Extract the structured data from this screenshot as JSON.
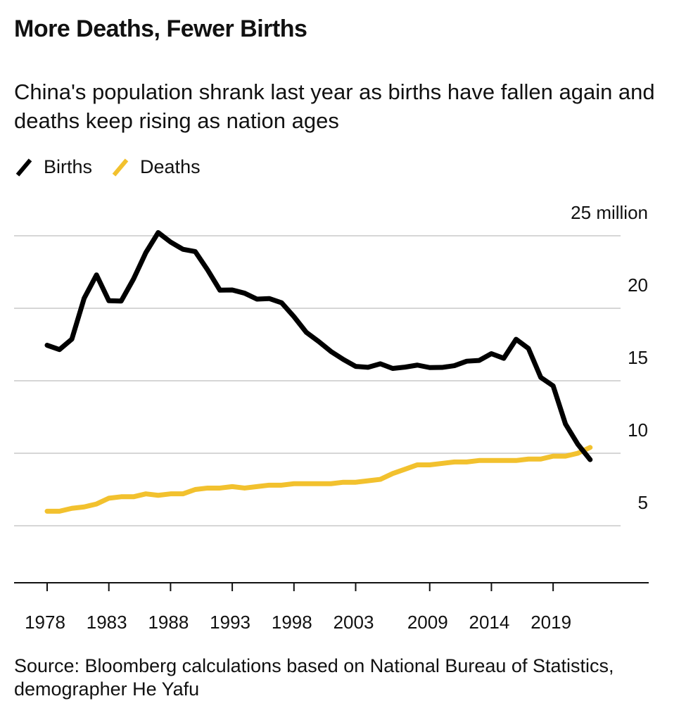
{
  "title": "More Deaths, Fewer Births",
  "subtitle": "China's population shrank last year as births have fallen again and deaths keep rising as nation ages",
  "source": "Source: Bloomberg calculations based on National Bureau of Statistics, demographer He Yafu",
  "chart_data": {
    "type": "line",
    "title": "More Deaths, Fewer Births",
    "xlabel": "",
    "ylabel": "",
    "ylim": [
      0,
      25
    ],
    "y_ticks": [
      {
        "v": 25,
        "label": "25 million"
      },
      {
        "v": 20,
        "label": "20"
      },
      {
        "v": 15,
        "label": "15"
      },
      {
        "v": 10,
        "label": "10"
      },
      {
        "v": 5,
        "label": "5"
      }
    ],
    "x_ticks": [
      "1978",
      "1983",
      "1988",
      "1993",
      "1998",
      "2003",
      "2009",
      "2014",
      "2019"
    ],
    "grid": true,
    "legend": "top-left",
    "x": [
      1978,
      1979,
      1980,
      1981,
      1982,
      1983,
      1984,
      1985,
      1986,
      1987,
      1988,
      1989,
      1990,
      1991,
      1992,
      1993,
      1994,
      1995,
      1996,
      1997,
      1998,
      1999,
      2000,
      2001,
      2002,
      2003,
      2004,
      2005,
      2006,
      2007,
      2008,
      2009,
      2010,
      2011,
      2012,
      2013,
      2014,
      2015,
      2016,
      2017,
      2018,
      2019,
      2020,
      2021,
      2022
    ],
    "series": [
      {
        "name": "Births",
        "color": "#000000",
        "values": [
          17.45,
          17.15,
          17.87,
          20.69,
          22.3,
          20.52,
          20.5,
          22.02,
          23.84,
          25.22,
          24.57,
          24.07,
          23.91,
          22.65,
          21.25,
          21.26,
          21.04,
          20.63,
          20.67,
          20.38,
          19.42,
          18.34,
          17.71,
          17.02,
          16.47,
          15.99,
          15.93,
          16.17,
          15.85,
          15.94,
          16.08,
          15.91,
          15.92,
          16.04,
          16.35,
          16.4,
          16.87,
          16.55,
          17.86,
          17.23,
          15.23,
          14.65,
          12.02,
          10.62,
          9.56
        ]
      },
      {
        "name": "Deaths",
        "color": "#f2c12e",
        "values": [
          6.0,
          6.0,
          6.2,
          6.3,
          6.5,
          6.9,
          7.0,
          7.0,
          7.2,
          7.1,
          7.2,
          7.2,
          7.5,
          7.6,
          7.6,
          7.7,
          7.6,
          7.7,
          7.8,
          7.8,
          7.9,
          7.9,
          7.9,
          7.9,
          8.0,
          8.0,
          8.1,
          8.2,
          8.6,
          8.9,
          9.2,
          9.2,
          9.3,
          9.4,
          9.4,
          9.5,
          9.5,
          9.5,
          9.5,
          9.6,
          9.6,
          9.8,
          9.8,
          10.0,
          10.4
        ]
      }
    ]
  }
}
